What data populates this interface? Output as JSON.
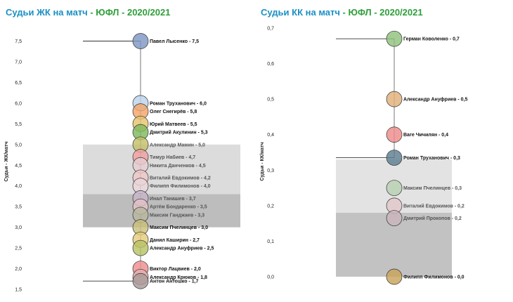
{
  "charts": [
    {
      "title_part1": "Судьи ЖК на матч",
      "title_part2": " - ЮФЛ - 2020/2021",
      "title_color1": "#1a8fc4",
      "title_color2": "#2e9e3a",
      "ylabel": "Судьи - ЖК/матч"
    },
    {
      "title_part1": "Судьи КК на матч",
      "title_part2": " - ЮФЛ - 2020/2021",
      "title_color1": "#1a8fc4",
      "title_color2": "#2e9e3a",
      "ylabel": "Судьи - КК/матч"
    }
  ],
  "chart_data": [
    {
      "type": "scatter",
      "title": "Судьи ЖК на матч - ЮФЛ - 2020/2021",
      "ylabel": "Судьи - ЖК/матч",
      "ylim": [
        1.5,
        7.7
      ],
      "yticks": [
        "7,5",
        "7,0",
        "6,5",
        "6,0",
        "5,5",
        "5,0",
        "4,5",
        "4,0",
        "3,5",
        "3,0",
        "2,5",
        "2,0",
        "1,5"
      ],
      "ytick_values": [
        7.5,
        7.0,
        6.5,
        6.0,
        5.5,
        5.0,
        4.5,
        4.0,
        3.5,
        3.0,
        2.5,
        2.0,
        1.5
      ],
      "bands": [
        {
          "from": 3.8,
          "to": 5.0,
          "color": "#dcdcdc"
        },
        {
          "from": 3.0,
          "to": 3.8,
          "color": "#bdbdbd"
        }
      ],
      "reference_lines": [
        7.5,
        1.7
      ],
      "points": [
        {
          "label": "Павел Лысенко - 7,5",
          "value": 7.5,
          "color": "#7f96c3"
        },
        {
          "label": "Роман Труханович - 6,0",
          "value": 6.0,
          "color": "#bcd3ec"
        },
        {
          "label": "Олег Снегирёв - 5,8",
          "value": 5.8,
          "color": "#f3a56a"
        },
        {
          "label": "Юрий Матвеев - 5,5",
          "value": 5.5,
          "color": "#e7c56e"
        },
        {
          "label": "Дмитрий Акулинин - 5,3",
          "value": 5.3,
          "color": "#7fba5f"
        },
        {
          "label": "Александр Мамин - 5,0",
          "value": 5.0,
          "color": "#c3c06a"
        },
        {
          "label": "Тимур Набиев - 4,7",
          "value": 4.7,
          "color": "#f2a0a0"
        },
        {
          "label": "Никита Данченков - 4,5",
          "value": 4.5,
          "color": "#e7cdd2"
        },
        {
          "label": "Виталий Евдокимов - 4,2",
          "value": 4.2,
          "color": "#efc7c7"
        },
        {
          "label": "Филипп Филимонов - 4,0",
          "value": 4.0,
          "color": "#ead5db"
        },
        {
          "label": "Инал Танашев - 3,7",
          "value": 3.7,
          "color": "#c7b6c8"
        },
        {
          "label": "Артём Бондаренко - 3,5",
          "value": 3.5,
          "color": "#e2c2c6"
        },
        {
          "label": "Максим Ганджаев - 3,3",
          "value": 3.3,
          "color": "#b7b7a0"
        },
        {
          "label": "Максим Пчелинцев - 3,0",
          "value": 3.0,
          "color": "#c9c07a"
        },
        {
          "label": "Данил Каширин - 2,7",
          "value": 2.7,
          "color": "#e5cc7c"
        },
        {
          "label": "Александр Ануфриев - 2,5",
          "value": 2.5,
          "color": "#b8c265"
        },
        {
          "label": "Виктор Лацвиев - 2,0",
          "value": 2.0,
          "color": "#ef8e8e"
        },
        {
          "label": "Александр Крюков - 1,8",
          "value": 1.8,
          "color": "#e4b0b0"
        },
        {
          "label": "Антон Антошко - 1,7",
          "value": 1.7,
          "color": "#a79a98"
        }
      ]
    },
    {
      "type": "scatter",
      "title": "Судьи КК на матч - ЮФЛ - 2020/2021",
      "ylabel": "Судьи - КК/матч",
      "ylim": [
        -0.01,
        0.7
      ],
      "yticks": [
        "0,7",
        "0,6",
        "0,5",
        "0,4",
        "0,3",
        "0,2",
        "0,1",
        "0,0"
      ],
      "ytick_values": [
        0.7,
        0.6,
        0.5,
        0.4,
        0.3,
        0.2,
        0.1,
        0.0
      ],
      "bands": [
        {
          "from": 0.18,
          "to": 0.33,
          "color": "#e3e3e3"
        },
        {
          "from": 0.0,
          "to": 0.18,
          "color": "#c2c2c2"
        }
      ],
      "reference_lines": [
        0.67,
        0.335
      ],
      "points": [
        {
          "label": "Герман Коволенко - 0,7",
          "value": 0.67,
          "color": "#8fc27c"
        },
        {
          "label": "Александр Ануфриев - 0,5",
          "value": 0.5,
          "color": "#e1b079"
        },
        {
          "label": "Ваге Чичилян - 0,4",
          "value": 0.4,
          "color": "#ee8b8b"
        },
        {
          "label": "Роман Труханович - 0,3",
          "value": 0.335,
          "color": "#5d7e8f"
        },
        {
          "label": "Максим Пчелинцев - 0,3",
          "value": 0.25,
          "color": "#b8d1b2"
        },
        {
          "label": "Виталий Евдокимов - 0,2",
          "value": 0.2,
          "color": "#e2c7c9"
        },
        {
          "label": "Дмитрий Прокопов - 0,2",
          "value": 0.165,
          "color": "#c9b6bc"
        },
        {
          "label": "Филипп Филимонов - 0,0",
          "value": 0.0,
          "color": "#c9a35a"
        }
      ]
    }
  ]
}
